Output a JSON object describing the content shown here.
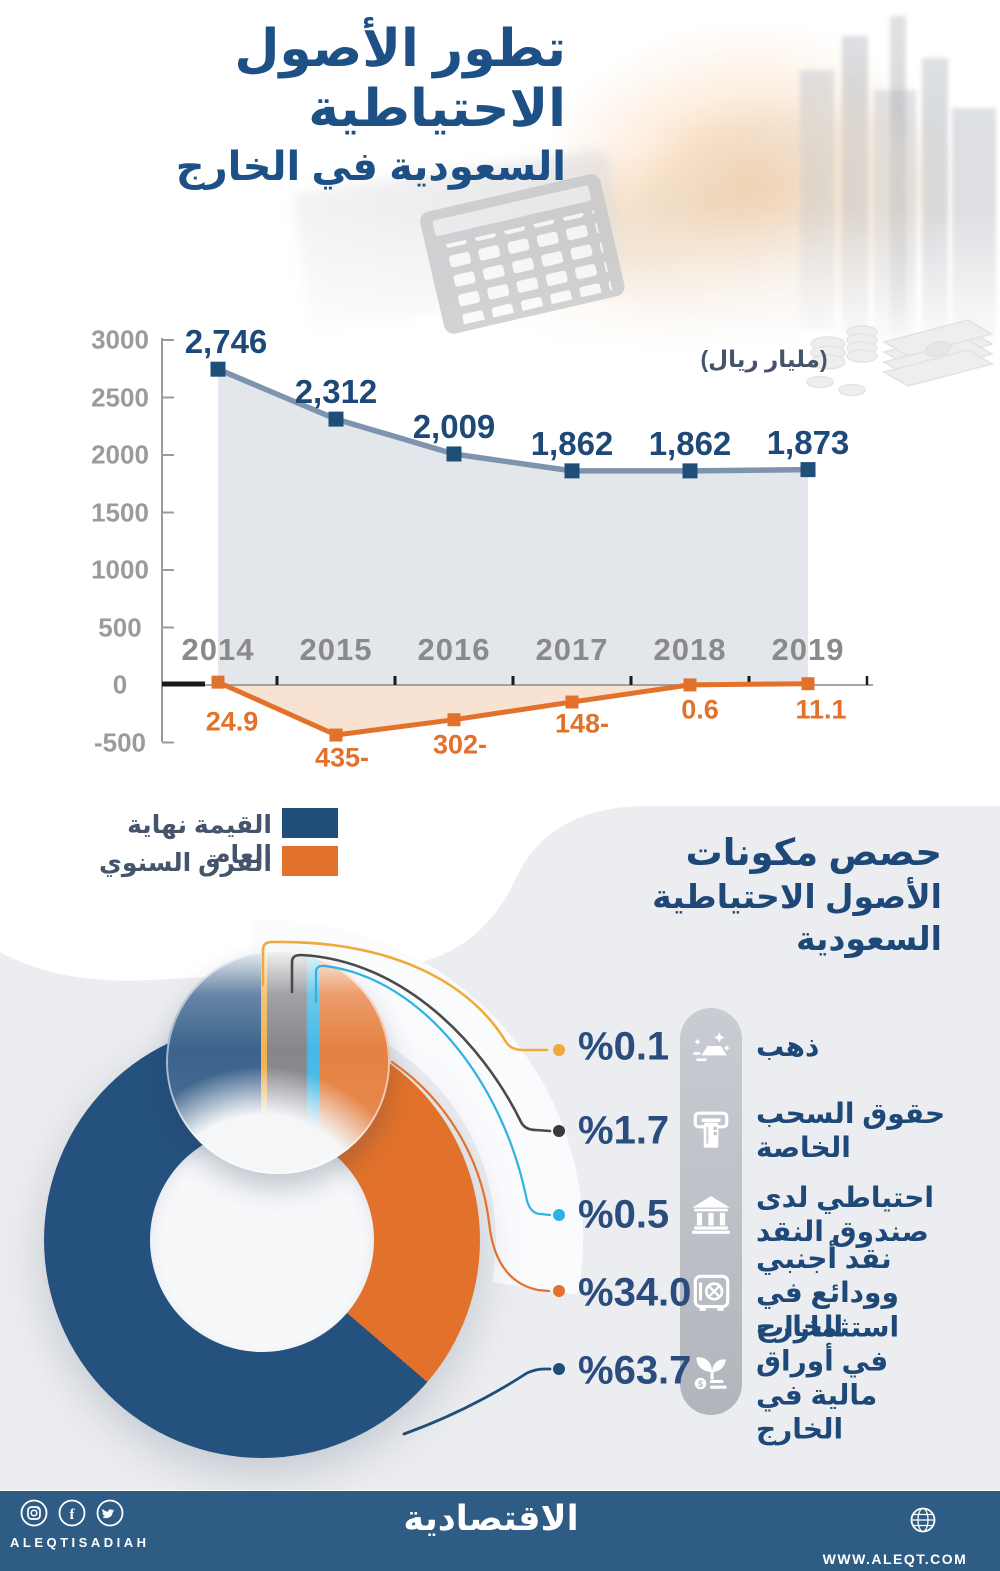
{
  "page_title": "تطور الأصول الاحتياطية السعودية في الخارج",
  "header": {
    "title_line1": "تطور الأصول الاحتياطية",
    "title_line2": "السعودية في الخارج"
  },
  "line_chart": {
    "unit_label": "(مليار ريال)",
    "y_ticks": [
      "3000",
      "2500",
      "2000",
      "1500",
      "1000",
      "500",
      "0",
      "-500"
    ],
    "y_tick_values": [
      3000,
      2500,
      2000,
      1500,
      1000,
      500,
      0,
      -500
    ],
    "years": [
      "2014",
      "2015",
      "2016",
      "2017",
      "2018",
      "2019"
    ],
    "series_year_end": {
      "label": "القيمة نهاية العام",
      "marker_color": "#1f4e79",
      "line_color": "#7e94ae",
      "area_color": "#e1e4ea",
      "values": [
        2746,
        2312,
        2009,
        1862,
        1862,
        1873
      ],
      "value_labels": [
        "2,746",
        "2,312",
        "2,009",
        "1,862",
        "1,862",
        "1,873"
      ]
    },
    "series_annual_diff": {
      "label": "الفرق السنوي",
      "marker_color": "#e2722b",
      "line_color": "#e2722b",
      "area_color": "#f6dcc8",
      "values": [
        24.9,
        -435,
        -302,
        -148,
        0.6,
        11.1
      ],
      "value_labels": [
        "24.9",
        "435-",
        "302-",
        "148-",
        "0.6",
        "11.1"
      ]
    }
  },
  "legend": {
    "year_end": "القيمة نهاية العام",
    "annual_diff": "الفرق السنوي"
  },
  "pie_section": {
    "title_line1": "حصص مكونات",
    "title_line2": "الأصول الاحتياطية السعودية",
    "slices": [
      {
        "name": "ذهب",
        "pct_label": "%0.1",
        "value": 0.1,
        "color": "#f0a93c",
        "icon": "gold-ingot-icon"
      },
      {
        "name": "حقوق السحب الخاصة",
        "pct_label": "%1.7",
        "value": 1.7,
        "color": "#77797e",
        "icon": "atm-card-icon"
      },
      {
        "name": "احتياطي لدى صندوق النقد",
        "pct_label": "%0.5",
        "value": 0.5,
        "color": "#2fb1e3",
        "icon": "bank-icon"
      },
      {
        "name": "نقد أجنبي وودائع في الخارج",
        "pct_label": "%34.0",
        "value": 34.0,
        "color": "#e2722b",
        "icon": "safe-icon"
      },
      {
        "name": "استثمارات في أوراق مالية في الخارج",
        "pct_label": "%63.7",
        "value": 63.7,
        "color": "#25517f",
        "icon": "sprout-coin-icon"
      }
    ]
  },
  "footer": {
    "brand": "الاقتصادية",
    "social_handle": "ALEQTISADIAH",
    "website": "WWW.ALEQT.COM",
    "bg_color": "#2e5c84"
  },
  "chart_data": [
    {
      "type": "line",
      "title": "تطور الأصول الاحتياطية السعودية في الخارج",
      "unit": "مليار ريال",
      "x": [
        "2014",
        "2015",
        "2016",
        "2017",
        "2018",
        "2019"
      ],
      "series": [
        {
          "name": "القيمة نهاية العام",
          "values": [
            2746,
            2312,
            2009,
            1862,
            1862,
            1873
          ]
        },
        {
          "name": "الفرق السنوي",
          "values": [
            24.9,
            -435,
            -302,
            -148,
            0.6,
            11.1
          ]
        }
      ],
      "ylim": [
        -500,
        3000
      ],
      "y_ticks": [
        3000,
        2500,
        2000,
        1500,
        1000,
        500,
        0,
        -500
      ],
      "grid": false,
      "area_fill": true,
      "legend_position": "bottom-left"
    },
    {
      "type": "pie",
      "donut": true,
      "title": "حصص مكونات الأصول الاحتياطية السعودية",
      "unit": "%",
      "labels": [
        "ذهب",
        "حقوق السحب الخاصة",
        "احتياطي لدى صندوق النقد",
        "نقد أجنبي وودائع في الخارج",
        "استثمارات في أوراق مالية في الخارج"
      ],
      "values": [
        0.1,
        1.7,
        0.5,
        34.0,
        63.7
      ],
      "colors": [
        "#f0a93c",
        "#77797e",
        "#2fb1e3",
        "#e2722b",
        "#25517f"
      ]
    }
  ]
}
